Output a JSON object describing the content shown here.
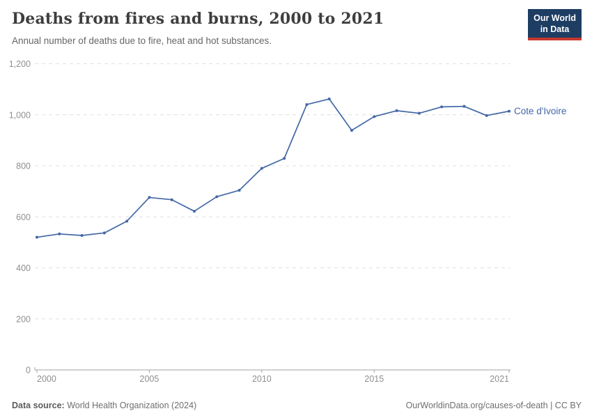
{
  "header": {
    "title": "Deaths from fires and burns, 2000 to 2021",
    "subtitle": "Annual number of deaths due to fire, heat and hot substances.",
    "logo": {
      "line1": "Our World",
      "line2": "in Data"
    }
  },
  "chart_data": {
    "type": "line",
    "title": "Deaths from fires and burns, 2000 to 2021",
    "xlabel": "",
    "ylabel": "",
    "xlim": [
      2000,
      2021
    ],
    "ylim": [
      0,
      1200
    ],
    "grid": "horizontal-dashed",
    "legend_position": "end-of-line-label",
    "x": [
      2000,
      2001,
      2002,
      2003,
      2004,
      2005,
      2006,
      2007,
      2008,
      2009,
      2010,
      2011,
      2012,
      2013,
      2014,
      2015,
      2016,
      2017,
      2018,
      2019,
      2020,
      2021
    ],
    "series": [
      {
        "name": "Cote d'Ivoire",
        "color": "#4267a5",
        "values": [
          520,
          533,
          527,
          537,
          583,
          676,
          667,
          622,
          679,
          704,
          790,
          829,
          1040,
          1062,
          939,
          993,
          1016,
          1006,
          1031,
          1033,
          997,
          1014
        ]
      }
    ],
    "x_ticks": [
      {
        "value": 2000,
        "label": "2000",
        "anchor": "start"
      },
      {
        "value": 2005,
        "label": "2005",
        "anchor": "middle"
      },
      {
        "value": 2010,
        "label": "2010",
        "anchor": "middle"
      },
      {
        "value": 2015,
        "label": "2015",
        "anchor": "middle"
      },
      {
        "value": 2021,
        "label": "2021",
        "anchor": "end"
      }
    ],
    "y_ticks": [
      {
        "value": 0,
        "label": "0"
      },
      {
        "value": 200,
        "label": "200"
      },
      {
        "value": 400,
        "label": "400"
      },
      {
        "value": 600,
        "label": "600"
      },
      {
        "value": 800,
        "label": "800"
      },
      {
        "value": 1000,
        "label": "1,000"
      },
      {
        "value": 1200,
        "label": "1,200"
      }
    ]
  },
  "footer": {
    "datasource_label": "Data source:",
    "datasource_value": "World Health Organization (2024)",
    "credit": "OurWorldinData.org/causes-of-death | CC BY"
  },
  "colors": {
    "line": "#4267a5",
    "grid": "#e0e0e0",
    "axis": "#a3a3a3",
    "logo_bg": "#1d3d63",
    "logo_accent": "#c7392f"
  }
}
